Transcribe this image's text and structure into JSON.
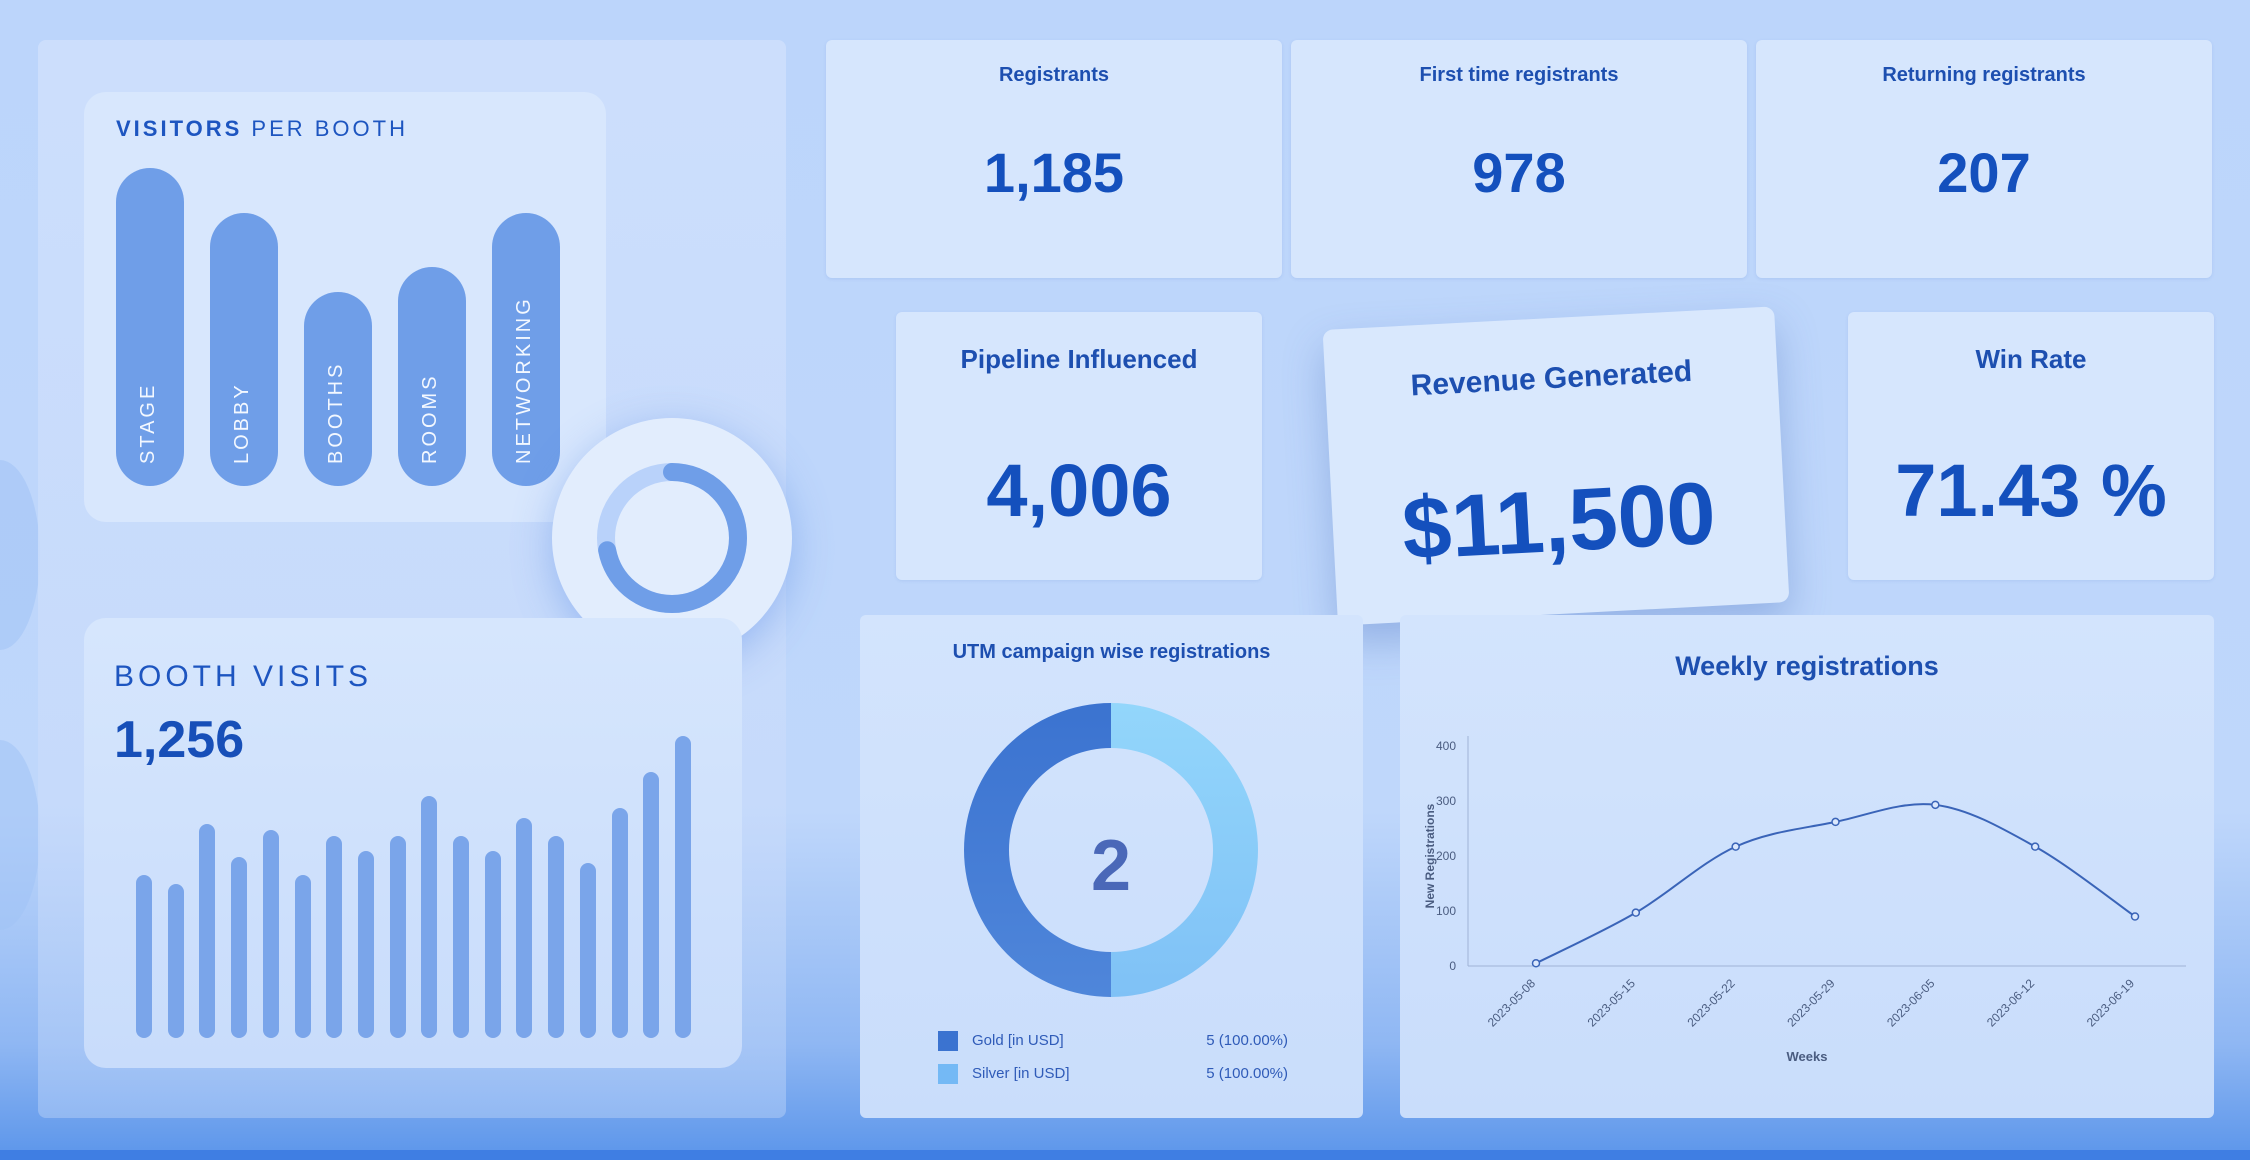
{
  "visitors_per_booth": {
    "title_bold": "VISITORS",
    "title_rest": " PER BOOTH",
    "booths": [
      {
        "label": "STAGE",
        "level": 1.0
      },
      {
        "label": "LOBBY",
        "level": 0.86
      },
      {
        "label": "BOOTHS",
        "level": 0.61
      },
      {
        "label": "ROOMS",
        "level": 0.69
      },
      {
        "label": "NETWORKING",
        "level": 0.86
      }
    ]
  },
  "progress_ring": {
    "fraction": 0.72,
    "color": "#6f9ee8",
    "track_color": "#b9d2fa"
  },
  "booth_visits": {
    "title": "BOOTH VISITS",
    "value": "1,256",
    "bars": [
      0.54,
      0.51,
      0.71,
      0.6,
      0.69,
      0.54,
      0.67,
      0.62,
      0.67,
      0.8,
      0.67,
      0.62,
      0.73,
      0.67,
      0.58,
      0.76,
      0.88,
      1.0
    ]
  },
  "kpis": {
    "registrants": {
      "label": "Registrants",
      "value": "1,185"
    },
    "first_time": {
      "label": "First time registrants",
      "value": "978"
    },
    "returning": {
      "label": "Returning registrants",
      "value": "207"
    },
    "pipeline": {
      "label": "Pipeline Influenced",
      "value": "4,006"
    },
    "revenue": {
      "label": "Revenue Generated",
      "value": "$11,500"
    },
    "win_rate": {
      "label": "Win Rate",
      "value": "71.43 %"
    }
  },
  "utm": {
    "title": "UTM campaign wise registrations",
    "center_value": "2",
    "legend": [
      {
        "label": "Gold [in USD]",
        "value": "5 (100.00%)",
        "color": "#3b73d0"
      },
      {
        "label": "Silver [in USD]",
        "value": "5 (100.00%)",
        "color": "#74b9f5"
      }
    ]
  },
  "weekly": {
    "title": "Weekly registrations"
  },
  "chart_data": {
    "type": "line",
    "title": "Weekly registrations",
    "xlabel": "Weeks",
    "ylabel": "New Registrations",
    "x": [
      "2023-05-08",
      "2023-05-15",
      "2023-05-22",
      "2023-05-29",
      "2023-06-05",
      "2023-06-12",
      "2023-06-19"
    ],
    "series": [
      {
        "values": [
          5,
          97,
          217,
          262,
          293,
          217,
          90
        ]
      }
    ],
    "yticks": [
      0,
      100,
      200,
      300,
      400
    ],
    "ylim": [
      0,
      400
    ],
    "grid": false,
    "color": "#3a64b8"
  }
}
